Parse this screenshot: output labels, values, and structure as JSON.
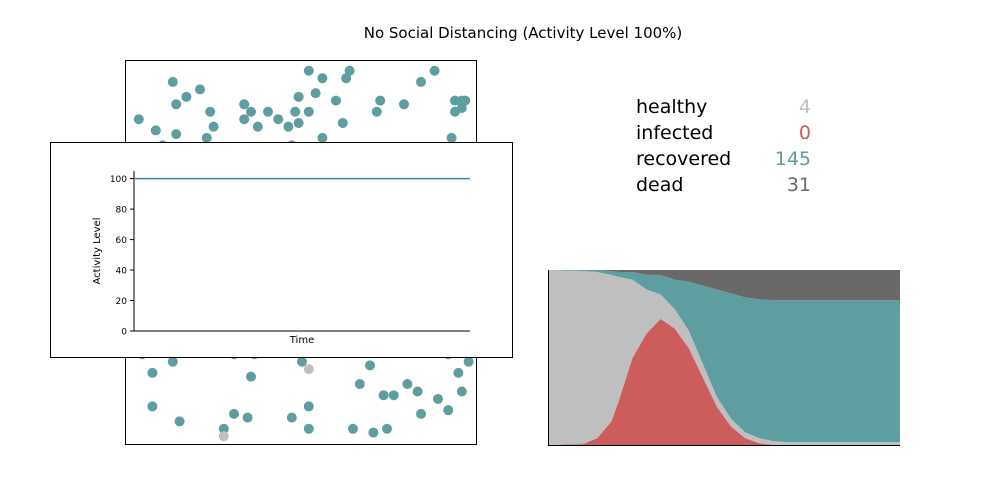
{
  "figure": {
    "title": "No Social Distancing (Activity Level 100%)"
  },
  "colors": {
    "healthy": "#bfbfbf",
    "infected": "#cd5c5c",
    "recovered": "#5f9ea0",
    "dead": "#696969",
    "line": "#3a86a8"
  },
  "counts": [
    {
      "key": "healthy",
      "label": "healthy",
      "value": "4",
      "color": "#bfbfbf"
    },
    {
      "key": "infected",
      "label": "infected",
      "value": "0",
      "color": "#cd5c5c"
    },
    {
      "key": "recovered",
      "label": "recovered",
      "value": "145",
      "color": "#5f9ea0"
    },
    {
      "key": "dead",
      "label": "dead",
      "value": "31",
      "color": "#696969"
    }
  ],
  "chart_data": [
    {
      "type": "scatter",
      "title": "",
      "xlim": [
        0,
        1
      ],
      "ylim": [
        0,
        1
      ],
      "grid": false,
      "points": [
        {
          "x": 0.12,
          "y": 0.96,
          "s": "recovered"
        },
        {
          "x": 0.16,
          "y": 0.92,
          "s": "recovered"
        },
        {
          "x": 0.2,
          "y": 0.94,
          "s": "recovered"
        },
        {
          "x": 0.13,
          "y": 0.9,
          "s": "recovered"
        },
        {
          "x": 0.02,
          "y": 0.86,
          "s": "recovered"
        },
        {
          "x": 0.07,
          "y": 0.83,
          "s": "recovered"
        },
        {
          "x": 0.13,
          "y": 0.82,
          "s": "recovered"
        },
        {
          "x": 0.09,
          "y": 0.79,
          "s": "recovered"
        },
        {
          "x": 0.23,
          "y": 0.88,
          "s": "recovered"
        },
        {
          "x": 0.24,
          "y": 0.84,
          "s": "recovered"
        },
        {
          "x": 0.22,
          "y": 0.81,
          "s": "recovered"
        },
        {
          "x": 0.33,
          "y": 0.9,
          "s": "recovered"
        },
        {
          "x": 0.35,
          "y": 0.88,
          "s": "recovered"
        },
        {
          "x": 0.33,
          "y": 0.86,
          "s": "recovered"
        },
        {
          "x": 0.37,
          "y": 0.84,
          "s": "recovered"
        },
        {
          "x": 0.4,
          "y": 0.88,
          "s": "recovered"
        },
        {
          "x": 0.43,
          "y": 0.86,
          "s": "recovered"
        },
        {
          "x": 0.46,
          "y": 0.84,
          "s": "recovered"
        },
        {
          "x": 0.52,
          "y": 0.99,
          "s": "recovered"
        },
        {
          "x": 0.56,
          "y": 0.97,
          "s": "recovered"
        },
        {
          "x": 0.54,
          "y": 0.93,
          "s": "recovered"
        },
        {
          "x": 0.49,
          "y": 0.92,
          "s": "recovered"
        },
        {
          "x": 0.48,
          "y": 0.88,
          "s": "recovered"
        },
        {
          "x": 0.52,
          "y": 0.88,
          "s": "recovered"
        },
        {
          "x": 0.49,
          "y": 0.85,
          "s": "recovered"
        },
        {
          "x": 0.56,
          "y": 0.81,
          "s": "recovered"
        },
        {
          "x": 0.6,
          "y": 0.91,
          "s": "recovered"
        },
        {
          "x": 0.62,
          "y": 0.85,
          "s": "recovered"
        },
        {
          "x": 0.63,
          "y": 0.97,
          "s": "recovered"
        },
        {
          "x": 0.64,
          "y": 0.99,
          "s": "recovered"
        },
        {
          "x": 0.72,
          "y": 0.88,
          "s": "recovered"
        },
        {
          "x": 0.73,
          "y": 0.91,
          "s": "recovered"
        },
        {
          "x": 0.8,
          "y": 0.9,
          "s": "recovered"
        },
        {
          "x": 0.85,
          "y": 0.96,
          "s": "recovered"
        },
        {
          "x": 0.89,
          "y": 0.99,
          "s": "recovered"
        },
        {
          "x": 0.95,
          "y": 0.91,
          "s": "recovered"
        },
        {
          "x": 0.97,
          "y": 0.91,
          "s": "recovered"
        },
        {
          "x": 0.98,
          "y": 0.91,
          "s": "recovered"
        },
        {
          "x": 0.97,
          "y": 0.89,
          "s": "recovered"
        },
        {
          "x": 0.95,
          "y": 0.88,
          "s": "recovered"
        },
        {
          "x": 0.94,
          "y": 0.81,
          "s": "recovered"
        },
        {
          "x": 0.9,
          "y": 0.78,
          "s": "recovered"
        },
        {
          "x": 0.79,
          "y": 0.78,
          "s": "recovered"
        },
        {
          "x": 0.43,
          "y": 0.78,
          "s": "recovered"
        },
        {
          "x": 0.47,
          "y": 0.79,
          "s": "recovered"
        },
        {
          "x": 0.5,
          "y": 0.78,
          "s": "recovered"
        },
        {
          "x": 0.36,
          "y": 0.74,
          "s": "recovered"
        },
        {
          "x": 0.1,
          "y": 0.77,
          "s": "recovered"
        },
        {
          "x": 0.03,
          "y": 0.23,
          "s": "recovered"
        },
        {
          "x": 0.06,
          "y": 0.18,
          "s": "recovered"
        },
        {
          "x": 0.12,
          "y": 0.21,
          "s": "recovered"
        },
        {
          "x": 0.3,
          "y": 0.23,
          "s": "recovered"
        },
        {
          "x": 0.36,
          "y": 0.23,
          "s": "recovered"
        },
        {
          "x": 0.35,
          "y": 0.17,
          "s": "recovered"
        },
        {
          "x": 0.5,
          "y": 0.21,
          "s": "recovered"
        },
        {
          "x": 0.52,
          "y": 0.19,
          "s": "healthy"
        },
        {
          "x": 0.7,
          "y": 0.2,
          "s": "recovered"
        },
        {
          "x": 0.67,
          "y": 0.15,
          "s": "recovered"
        },
        {
          "x": 0.74,
          "y": 0.12,
          "s": "recovered"
        },
        {
          "x": 0.77,
          "y": 0.12,
          "s": "recovered"
        },
        {
          "x": 0.81,
          "y": 0.15,
          "s": "recovered"
        },
        {
          "x": 0.84,
          "y": 0.13,
          "s": "recovered"
        },
        {
          "x": 0.9,
          "y": 0.11,
          "s": "recovered"
        },
        {
          "x": 0.96,
          "y": 0.18,
          "s": "recovered"
        },
        {
          "x": 0.97,
          "y": 0.13,
          "s": "recovered"
        },
        {
          "x": 0.99,
          "y": 0.21,
          "s": "recovered"
        },
        {
          "x": 0.93,
          "y": 0.23,
          "s": "recovered"
        },
        {
          "x": 0.06,
          "y": 0.09,
          "s": "recovered"
        },
        {
          "x": 0.14,
          "y": 0.05,
          "s": "recovered"
        },
        {
          "x": 0.27,
          "y": 0.03,
          "s": "recovered"
        },
        {
          "x": 0.3,
          "y": 0.07,
          "s": "recovered"
        },
        {
          "x": 0.34,
          "y": 0.06,
          "s": "recovered"
        },
        {
          "x": 0.47,
          "y": 0.06,
          "s": "recovered"
        },
        {
          "x": 0.52,
          "y": 0.09,
          "s": "recovered"
        },
        {
          "x": 0.52,
          "y": 0.03,
          "s": "recovered"
        },
        {
          "x": 0.65,
          "y": 0.03,
          "s": "recovered"
        },
        {
          "x": 0.71,
          "y": 0.02,
          "s": "recovered"
        },
        {
          "x": 0.75,
          "y": 0.03,
          "s": "recovered"
        },
        {
          "x": 0.85,
          "y": 0.07,
          "s": "recovered"
        },
        {
          "x": 0.93,
          "y": 0.08,
          "s": "recovered"
        },
        {
          "x": 0.27,
          "y": 0.01,
          "s": "healthy"
        }
      ]
    },
    {
      "type": "line",
      "title": "",
      "xlabel": "Time",
      "ylabel": "Activity Level",
      "ylim": [
        0,
        105
      ],
      "xlim": [
        0,
        100
      ],
      "yticks": [
        "0",
        "20",
        "40",
        "60",
        "80",
        "100"
      ],
      "series": [
        {
          "x": [
            0,
            100
          ],
          "values": [
            100,
            100
          ]
        }
      ]
    },
    {
      "type": "area",
      "title": "",
      "stacked": true,
      "x": [
        0,
        10,
        14,
        18,
        20,
        24,
        28,
        32,
        36,
        40,
        44,
        48,
        52,
        56,
        60,
        64,
        68,
        100
      ],
      "series": [
        {
          "name": "",
          "key": "infected",
          "values": [
            1,
            2,
            8,
            25,
            45,
            90,
            115,
            130,
            120,
            100,
            70,
            40,
            20,
            8,
            3,
            1,
            0,
            0
          ]
        },
        {
          "name": "",
          "key": "healthy",
          "values": [
            179,
            177,
            170,
            150,
            128,
            80,
            45,
            25,
            20,
            18,
            14,
            10,
            8,
            6,
            5,
            4,
            4,
            4
          ]
        },
        {
          "name": "",
          "key": "recovered",
          "values": [
            0,
            1,
            2,
            4,
            5,
            8,
            15,
            20,
            30,
            50,
            80,
            110,
            128,
            138,
            142,
            144,
            145,
            145
          ]
        },
        {
          "name": "",
          "key": "dead",
          "values": [
            0,
            0,
            0,
            1,
            2,
            2,
            5,
            5,
            10,
            12,
            16,
            20,
            24,
            28,
            30,
            31,
            31,
            31
          ]
        }
      ],
      "ylim": [
        0,
        180
      ]
    }
  ]
}
